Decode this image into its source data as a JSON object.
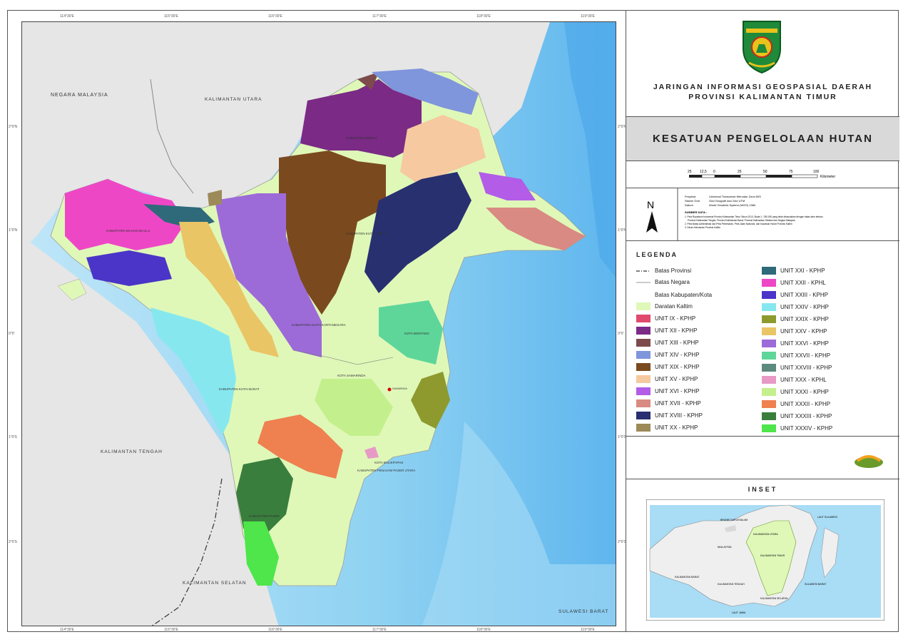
{
  "org": {
    "title_line1": "JARINGAN INFORMASI GEOSPASIAL DAERAH",
    "title_line2": "PROVINSI KALIMANTAN TIMUR"
  },
  "map_title": "KESATUAN PENGELOLAAN HUTAN",
  "scale": {
    "ticks": [
      "25",
      "12,5",
      "0",
      "25",
      "50",
      "75",
      "100"
    ],
    "unit": "Kilometer"
  },
  "north": "N",
  "meta": {
    "proyeksi_label": "Proyeksi",
    "proyeksi_value": "Universal Transverse Mercator Zona 50S",
    "grid_label": "Sistem Grid",
    "grid_value": "Grid Geografi dan Grid UTM",
    "datum_label": "Datum",
    "datum_value": "World Geodetic System (WGS) 1984",
    "sumber_title": "SUMBER DATA :",
    "sumber_1": "1. Peta Rupabumi Indonesia Provinsi Kalimantan Timur Tahun 2013, Skala 1 : 250.000 yang telah disesuaikan dengan batas adm terbaru",
    "sumber_1b": "Provinsi Kalimantan Tengah, Provinsi Kalimantan Barat, Provinsi Kalimantan Selatan dan Negara Malaysia",
    "sumber_2": "2. Peta Batas Administrasi dan Peta Pemekaran, Peta Jalan Nasional, dan Kawasan Hutan Provinsi Kaltim",
    "sumber_3": "3. Dinas Kehutanan Provinsi Kaltim"
  },
  "legend": {
    "title": "LEGENDA",
    "lines": [
      {
        "label": "Batas Provinsi",
        "style": "dashdot"
      },
      {
        "label": "Batas Negara",
        "style": "thin"
      },
      {
        "label": "Batas Kabupaten/Kota",
        "style": "none"
      }
    ],
    "col1": [
      {
        "label": "Daratan Kaltim",
        "color": "#dff8b8"
      },
      {
        "label": "UNIT IX - KPHP",
        "color": "#e04a6c"
      },
      {
        "label": "UNIT XII - KPHP",
        "color": "#7b2a86"
      },
      {
        "label": "UNIT XIII - KPHP",
        "color": "#7d4b4b"
      },
      {
        "label": "UNIT XIV - KPHP",
        "color": "#7f95dc"
      },
      {
        "label": "UNIT XIX - KPHP",
        "color": "#7a4a1e"
      },
      {
        "label": "UNIT XV - KPHP",
        "color": "#f6c9a0"
      },
      {
        "label": "UNIT XVI - KPHP",
        "color": "#b25ce8"
      },
      {
        "label": "UNIT XVII - KPHP",
        "color": "#d98a82"
      },
      {
        "label": "UNIT XVIII - KPHP",
        "color": "#283070"
      },
      {
        "label": "UNIT XX - KPHP",
        "color": "#9c8a58"
      }
    ],
    "col2": [
      {
        "label": "UNIT XXI - KPHP",
        "color": "#2e6a7a"
      },
      {
        "label": "UNIT XXII - KPHL",
        "color": "#ee47c6"
      },
      {
        "label": "UNIT XXIII - KPHP",
        "color": "#4a35c8"
      },
      {
        "label": "UNIT XXIV - KPHP",
        "color": "#86e8ee"
      },
      {
        "label": "UNIT XXIX - KPHP",
        "color": "#8e9a2e"
      },
      {
        "label": "UNIT XXV - KPHP",
        "color": "#e9c566"
      },
      {
        "label": "UNIT XXVI - KPHP",
        "color": "#9d6bd8"
      },
      {
        "label": "UNIT XXVII - KPHP",
        "color": "#5ed69a"
      },
      {
        "label": "UNIT XXVIII - KPHP",
        "color": "#5d8a7e"
      },
      {
        "label": "UNIT XXX - KPHL",
        "color": "#e79ac6"
      },
      {
        "label": "UNIT XXXI - KPHP",
        "color": "#c3f08c"
      },
      {
        "label": "UNIT XXXII - KPHP",
        "color": "#ef8050"
      },
      {
        "label": "UNIT XXXIII - KPHP",
        "color": "#3a7e3e"
      },
      {
        "label": "UNIT XXXIV - KPHP",
        "color": "#4ee64a"
      }
    ]
  },
  "inset": {
    "title": "INSET",
    "labels": {
      "brunei": "BRUNEI DARUSSALAM",
      "malaysia": "MALAYSIA",
      "kalut": "KALIMANTAN UTARA",
      "kaltim": "KALIMANTAN TIMUR",
      "kalbar": "KALIMANTAN BARAT",
      "kalteng": "KALIMANTAN TENGAH",
      "kalsel": "KALIMANTAN SELATAN",
      "sulbar": "SULAWESI BARAT",
      "jawa": "LAUT JAWA",
      "sulawesi": "LAUT SULAWESI"
    }
  },
  "map_labels": {
    "malaysia": "NEGARA MALAYSIA",
    "kalut": "KALIMANTAN UTARA",
    "kalteng": "KALIMANTAN TENGAH",
    "kalsel": "KALIMANTAN SELATAN",
    "sulbar": "SULAWESI BARAT",
    "berau": "KABUPATEN BERAU",
    "mahulu": "KABUPATEN MAHAKAM ULU",
    "kutim": "KABUPATEN KUTAI TIMUR",
    "kukar": "KABUPATEN KUTAI KARTANEGARA",
    "bontang": "KOTA BONTANG",
    "samarinda": "KOTA SAMARINDA",
    "kubar": "KABUPATEN KUTAI BARAT",
    "balikpapan": "KOTA BALIKPAPAN",
    "ppu": "KABUPATEN PENAJAM PASER UTARA",
    "paser": "KABUPATEN PASER",
    "capital": "SAMARINDA"
  },
  "ticks_top": [
    "114°30'E",
    "115°30'E",
    "116°30'E",
    "117°30'E",
    "118°30'E",
    "119°30'E"
  ],
  "ticks_side": [
    "2°0'N",
    "1°0'N",
    "0°0'",
    "1°0'S",
    "2°0'S"
  ]
}
